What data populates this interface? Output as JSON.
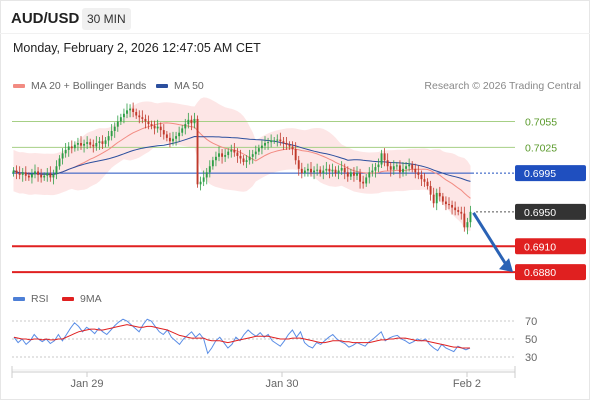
{
  "header": {
    "symbol": "AUD/USD",
    "timeframe": "30 MIN",
    "datetime": "Monday, February 2, 2026 12:47:05 AM CET"
  },
  "legend": {
    "ma20": "MA 20 + Bollinger Bands",
    "ma50": "MA 50",
    "copyright": "Research © 2026 Trading Central",
    "rsi": "RSI",
    "rsi_ma": "9MA"
  },
  "colors": {
    "bullish": "#2e9e46",
    "bearish": "#c0392b",
    "bollinger_fill": "#fde2e2",
    "ma20": "#f28b82",
    "ma50": "#2c4f9e",
    "resistance": "#a6cf85",
    "support": "#e02020",
    "current": "#1f4fbf",
    "last_price": "#333333",
    "arrow": "#2a62b5"
  },
  "chart_data": [
    {
      "type": "candlestick",
      "title": "AUD/USD 30 MIN",
      "x_ticks": [
        "Jan 29",
        "Jan 30",
        "Feb 2"
      ],
      "ylim": [
        0.6865,
        0.708
      ],
      "levels": [
        {
          "value": 0.7055,
          "label": "0.7055",
          "kind": "resistance"
        },
        {
          "value": 0.7025,
          "label": "0.7025",
          "kind": "resistance"
        },
        {
          "value": 0.6995,
          "label": "0.6995",
          "kind": "current"
        },
        {
          "value": 0.695,
          "label": "0.6950",
          "kind": "last"
        },
        {
          "value": 0.691,
          "label": "0.6910",
          "kind": "support"
        },
        {
          "value": 0.688,
          "label": "0.6880",
          "kind": "support"
        }
      ],
      "closes": [
        0.6998,
        0.6995,
        0.6993,
        0.6996,
        0.6992,
        0.699,
        0.6994,
        0.6997,
        0.6993,
        0.699,
        0.6992,
        0.6995,
        0.699,
        0.6994,
        0.7003,
        0.7012,
        0.7018,
        0.7022,
        0.7026,
        0.7024,
        0.7028,
        0.703,
        0.7027,
        0.7029,
        0.7031,
        0.7028,
        0.7026,
        0.703,
        0.7032,
        0.7029,
        0.7033,
        0.7038,
        0.7044,
        0.7049,
        0.7055,
        0.706,
        0.7064,
        0.7068,
        0.707,
        0.7066,
        0.7062,
        0.706,
        0.7058,
        0.7055,
        0.7052,
        0.705,
        0.7047,
        0.7049,
        0.7045,
        0.704,
        0.7036,
        0.7032,
        0.7035,
        0.7038,
        0.7042,
        0.7047,
        0.7052,
        0.7057,
        0.7053,
        0.7058,
        0.6982,
        0.6985,
        0.699,
        0.6996,
        0.7003,
        0.701,
        0.7014,
        0.7018,
        0.7014,
        0.7016,
        0.702,
        0.7022,
        0.7019,
        0.7015,
        0.7012,
        0.7008,
        0.701,
        0.7014,
        0.7017,
        0.702,
        0.7024,
        0.7027,
        0.703,
        0.7031,
        0.7033,
        0.7033,
        0.7034,
        0.7032,
        0.703,
        0.7028,
        0.7026,
        0.7023,
        0.701,
        0.7,
        0.6995,
        0.6998,
        0.7,
        0.6996,
        0.6998,
        0.6999,
        0.6995,
        0.6998,
        0.7,
        0.6997,
        0.6999,
        0.6995,
        0.6998,
        0.7001,
        0.6996,
        0.6991,
        0.6996,
        0.6992,
        0.6995,
        0.6985,
        0.6983,
        0.699,
        0.6996,
        0.6998,
        0.7002,
        0.7005,
        0.7018,
        0.701,
        0.7003,
        0.6999,
        0.7003,
        0.7004,
        0.6996,
        0.7,
        0.7003,
        0.7005,
        0.7,
        0.6996,
        0.6993,
        0.6988,
        0.6985,
        0.698,
        0.697,
        0.696,
        0.6972,
        0.6968,
        0.6962,
        0.6959,
        0.6958,
        0.6955,
        0.6952,
        0.695,
        0.6948,
        0.6932,
        0.6938,
        0.695
      ]
    },
    {
      "type": "line",
      "title": "RSI",
      "y_ticks": [
        "70",
        "50",
        "30"
      ],
      "ylim": [
        20,
        80
      ],
      "series": [
        {
          "name": "RSI",
          "values": [
            52,
            46,
            50,
            44,
            48,
            55,
            50,
            47,
            50,
            45,
            48,
            55,
            48,
            55,
            62,
            68,
            64,
            58,
            63,
            60,
            56,
            62,
            58,
            55,
            60,
            65,
            69,
            72,
            70,
            66,
            62,
            58,
            66,
            72,
            70,
            64,
            58,
            55,
            60,
            52,
            48,
            44,
            50,
            54,
            58,
            52,
            56,
            50,
            34,
            40,
            48,
            52,
            46,
            40,
            44,
            52,
            48,
            55,
            60,
            56,
            53,
            57,
            52,
            55,
            48,
            45,
            42,
            48,
            55,
            60,
            52,
            58,
            46,
            42,
            40,
            46,
            44,
            48,
            52,
            55,
            50,
            47,
            45,
            41,
            43,
            46,
            44,
            42,
            47,
            50,
            54,
            58,
            48,
            51,
            53,
            54,
            50,
            48,
            45,
            47,
            50,
            48,
            50,
            44,
            40,
            37,
            44,
            40,
            38,
            36,
            42,
            40,
            38,
            40
          ]
        },
        {
          "name": "9MA",
          "values": [
            52,
            51,
            50,
            50,
            49,
            50,
            50,
            49,
            50,
            49,
            49,
            50,
            50,
            52,
            54,
            56,
            58,
            59,
            60,
            61,
            61,
            60,
            60,
            61,
            62,
            63,
            64,
            65,
            66,
            65,
            64,
            63,
            63,
            64,
            64,
            63,
            62,
            61,
            60,
            58,
            56,
            54,
            53,
            52,
            51,
            51,
            51,
            51,
            49,
            48,
            48,
            48,
            47,
            46,
            47,
            48,
            49,
            50,
            51,
            52,
            53,
            53,
            53,
            53,
            52,
            51,
            50,
            50,
            50,
            51,
            51,
            51,
            50,
            49,
            48,
            47,
            46,
            46,
            47,
            48,
            48,
            48,
            47,
            47,
            46,
            46,
            46,
            46,
            46,
            47,
            48,
            49,
            49,
            50,
            50,
            51,
            51,
            51,
            50,
            49,
            48,
            48,
            48,
            47,
            46,
            45,
            44,
            43,
            42,
            41,
            41,
            40,
            40,
            40
          ]
        }
      ]
    }
  ]
}
